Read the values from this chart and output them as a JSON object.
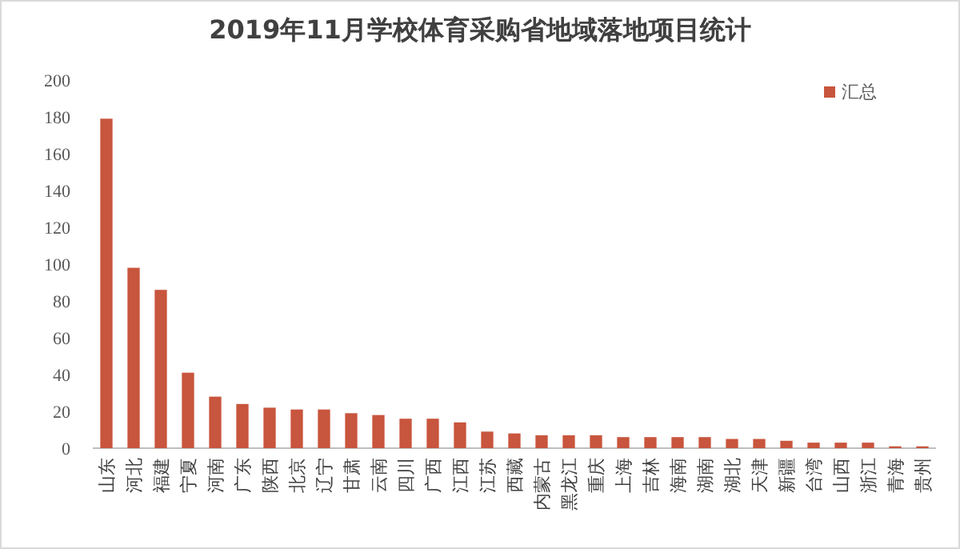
{
  "chart_data": {
    "type": "bar",
    "title": "2019年11月学校体育采购省地域落地项目统计",
    "categories": [
      "山东",
      "河北",
      "福建",
      "宁夏",
      "河南",
      "广东",
      "陕西",
      "北京",
      "辽宁",
      "甘肃",
      "云南",
      "四川",
      "广西",
      "江西",
      "江苏",
      "西藏",
      "内蒙古",
      "黑龙江",
      "重庆",
      "上海",
      "吉林",
      "海南",
      "湖南",
      "湖北",
      "天津",
      "新疆",
      "台湾",
      "山西",
      "浙江",
      "青海",
      "贵州"
    ],
    "series": [
      {
        "name": "汇总",
        "color": "#c8553d",
        "values": [
          179,
          98,
          86,
          41,
          28,
          24,
          22,
          21,
          21,
          19,
          18,
          16,
          16,
          14,
          9,
          8,
          7,
          7,
          7,
          6,
          6,
          6,
          6,
          5,
          5,
          4,
          3,
          3,
          3,
          1,
          1
        ]
      }
    ],
    "ylim": [
      0,
      200
    ],
    "yticks": [
      0,
      20,
      40,
      60,
      80,
      100,
      120,
      140,
      160,
      180,
      200
    ],
    "legend": "top right"
  }
}
